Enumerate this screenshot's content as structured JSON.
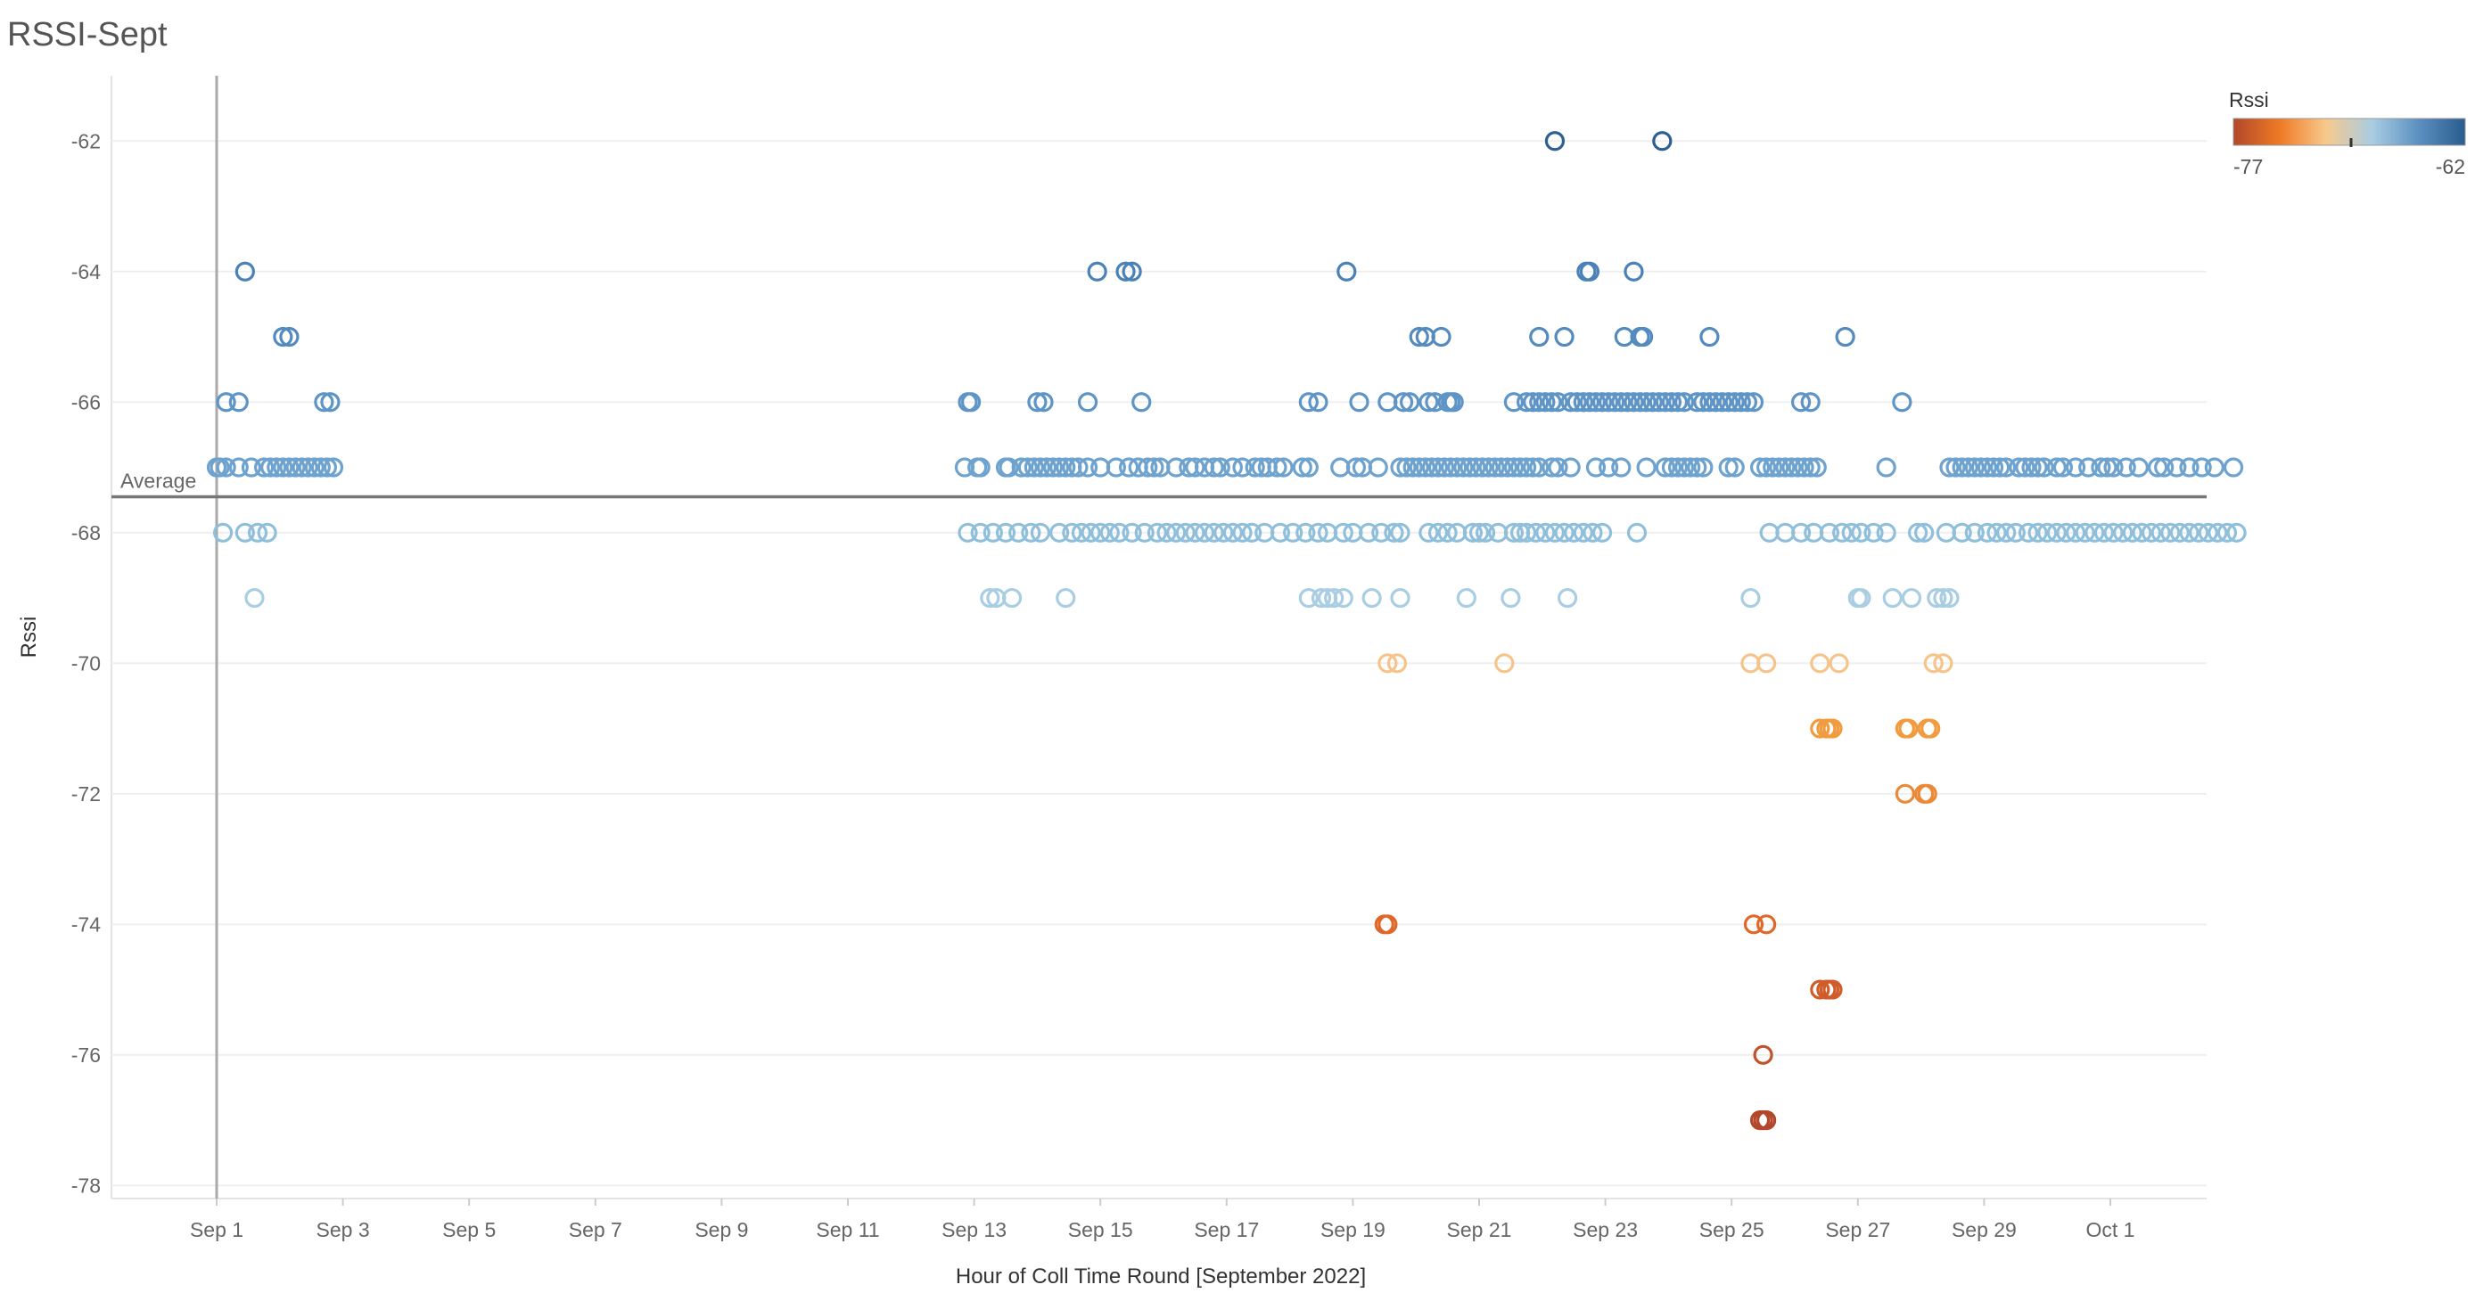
{
  "title": "RSSI-Sept",
  "chart_data": {
    "type": "scatter",
    "title": "RSSI-Sept",
    "xlabel": "Hour of Coll Time Round [September 2022]",
    "ylabel": "Rssi",
    "x_ticks": [
      "Sep 1",
      "Sep 3",
      "Sep 5",
      "Sep 7",
      "Sep 9",
      "Sep 11",
      "Sep 13",
      "Sep 15",
      "Sep 17",
      "Sep 19",
      "Sep 21",
      "Sep 23",
      "Sep 25",
      "Sep 27",
      "Sep 29",
      "Oct 1"
    ],
    "y_ticks": [
      -62,
      -64,
      -66,
      -68,
      -70,
      -72,
      -74,
      -76,
      -78
    ],
    "xlim": [
      0.2,
      33.3
    ],
    "ylim": [
      -78.2,
      -61
    ],
    "grid": true,
    "marker": "hollow circle",
    "color_legend": {
      "title": "Rssi",
      "min": -77,
      "max": -62,
      "min_label": "-77",
      "max_label": "-62",
      "colors": [
        "#b3472b",
        "#ef7a25",
        "#f7c98c",
        "#a8cde3",
        "#5b8fbf",
        "#2a5d8f"
      ]
    },
    "reference_line": {
      "label": "Average",
      "value": -67.45
    },
    "series": [
      {
        "y": -62,
        "x": [
          22.2,
          23.9
        ]
      },
      {
        "y": -64,
        "x": [
          1.45,
          14.95,
          15.4,
          15.5,
          18.9,
          22.7,
          22.75,
          23.45
        ]
      },
      {
        "y": -65,
        "x": [
          2.05,
          2.15,
          20.05,
          20.15,
          20.4,
          21.95,
          22.35,
          23.3,
          23.55,
          23.6,
          24.65,
          26.8
        ]
      },
      {
        "y": -66,
        "x": [
          1.15,
          1.35,
          2.7,
          2.8,
          12.9,
          12.95,
          14.0,
          14.1,
          14.8,
          15.65,
          18.3,
          18.45,
          19.1,
          19.55,
          19.8,
          19.9,
          20.2,
          20.3,
          20.5,
          20.55,
          20.6,
          21.55,
          21.75,
          21.85,
          21.95,
          22.05,
          22.15,
          22.25,
          22.45,
          22.55,
          22.65,
          22.75,
          22.85,
          22.95,
          23.05,
          23.15,
          23.25,
          23.35,
          23.45,
          23.55,
          23.65,
          23.75,
          23.85,
          23.95,
          24.05,
          24.15,
          24.25,
          24.45,
          24.55,
          24.65,
          24.75,
          24.85,
          24.95,
          25.05,
          25.15,
          25.25,
          25.35,
          26.1,
          26.25,
          27.7
        ]
      },
      {
        "y": -67,
        "x": [
          1.0,
          1.05,
          1.15,
          1.35,
          1.55,
          1.75,
          1.85,
          1.95,
          2.05,
          2.15,
          2.25,
          2.35,
          2.45,
          2.55,
          2.65,
          2.75,
          2.85,
          12.85,
          13.05,
          13.1,
          13.5,
          13.55,
          13.75,
          13.85,
          13.95,
          14.05,
          14.15,
          14.25,
          14.35,
          14.45,
          14.55,
          14.65,
          14.8,
          15.0,
          15.25,
          15.45,
          15.6,
          15.75,
          15.85,
          15.95,
          16.2,
          16.4,
          16.5,
          16.65,
          16.8,
          16.9,
          17.1,
          17.25,
          17.45,
          17.55,
          17.65,
          17.8,
          17.9,
          18.2,
          18.3,
          18.8,
          19.05,
          19.15,
          19.4,
          19.75,
          19.85,
          19.95,
          20.05,
          20.15,
          20.25,
          20.35,
          20.45,
          20.55,
          20.65,
          20.75,
          20.85,
          20.95,
          21.05,
          21.15,
          21.25,
          21.35,
          21.45,
          21.55,
          21.65,
          21.75,
          21.85,
          21.95,
          22.15,
          22.25,
          22.45,
          22.85,
          23.05,
          23.25,
          23.65,
          23.95,
          24.05,
          24.15,
          24.25,
          24.35,
          24.45,
          24.55,
          24.95,
          25.05,
          25.45,
          25.55,
          25.65,
          25.75,
          25.85,
          25.95,
          26.05,
          26.15,
          26.25,
          26.35,
          27.45,
          28.45,
          28.55,
          28.65,
          28.75,
          28.85,
          28.95,
          29.05,
          29.15,
          29.25,
          29.35,
          29.55,
          29.65,
          29.75,
          29.85,
          29.95,
          30.15,
          30.25,
          30.45,
          30.65,
          30.85,
          30.95,
          31.05,
          31.25,
          31.45,
          31.75,
          31.85,
          32.05,
          32.25,
          32.45,
          32.65,
          32.95
        ]
      },
      {
        "y": -68,
        "x": [
          1.1,
          1.45,
          1.65,
          1.8,
          12.9,
          13.1,
          13.3,
          13.5,
          13.7,
          13.9,
          14.05,
          14.35,
          14.55,
          14.7,
          14.85,
          15.0,
          15.15,
          15.3,
          15.5,
          15.7,
          15.9,
          16.05,
          16.2,
          16.35,
          16.5,
          16.65,
          16.8,
          16.95,
          17.1,
          17.25,
          17.4,
          17.6,
          17.85,
          18.05,
          18.25,
          18.45,
          18.6,
          18.85,
          19.0,
          19.25,
          19.45,
          19.65,
          19.75,
          20.2,
          20.35,
          20.5,
          20.65,
          20.9,
          21.0,
          21.1,
          21.3,
          21.55,
          21.65,
          21.75,
          21.9,
          22.05,
          22.2,
          22.35,
          22.5,
          22.65,
          22.8,
          22.95,
          23.5,
          25.6,
          25.85,
          26.1,
          26.3,
          26.55,
          26.75,
          26.9,
          27.05,
          27.25,
          27.45,
          27.95,
          28.05,
          28.4,
          28.65,
          28.85,
          29.05,
          29.2,
          29.35,
          29.5,
          29.7,
          29.85,
          30.0,
          30.15,
          30.3,
          30.45,
          30.6,
          30.75,
          30.9,
          31.05,
          31.2,
          31.35,
          31.5,
          31.65,
          31.8,
          31.95,
          32.1,
          32.25,
          32.4,
          32.55,
          32.7,
          32.85,
          33.0
        ]
      },
      {
        "y": -69,
        "x": [
          1.6,
          13.25,
          13.35,
          13.6,
          14.45,
          18.3,
          18.5,
          18.6,
          18.7,
          18.85,
          19.3,
          19.75,
          20.8,
          21.5,
          22.4,
          25.3,
          27.0,
          27.05,
          27.55,
          27.85,
          28.25,
          28.35,
          28.45
        ]
      },
      {
        "y": -70,
        "x": [
          19.55,
          19.7,
          21.4,
          25.3,
          25.55,
          26.4,
          26.7,
          28.2,
          28.35
        ]
      },
      {
        "y": -71,
        "x": [
          26.4,
          26.5,
          26.55,
          26.6,
          27.75,
          27.8,
          28.1,
          28.15
        ]
      },
      {
        "y": -72,
        "x": [
          27.75,
          28.05,
          28.1
        ]
      },
      {
        "y": -74,
        "x": [
          19.5,
          19.55,
          25.35,
          25.55
        ]
      },
      {
        "y": -75,
        "x": [
          26.4,
          26.5,
          26.55,
          26.6
        ]
      },
      {
        "y": -76,
        "x": [
          25.5
        ]
      },
      {
        "y": -77,
        "x": [
          25.45,
          25.5,
          25.55
        ]
      }
    ]
  }
}
